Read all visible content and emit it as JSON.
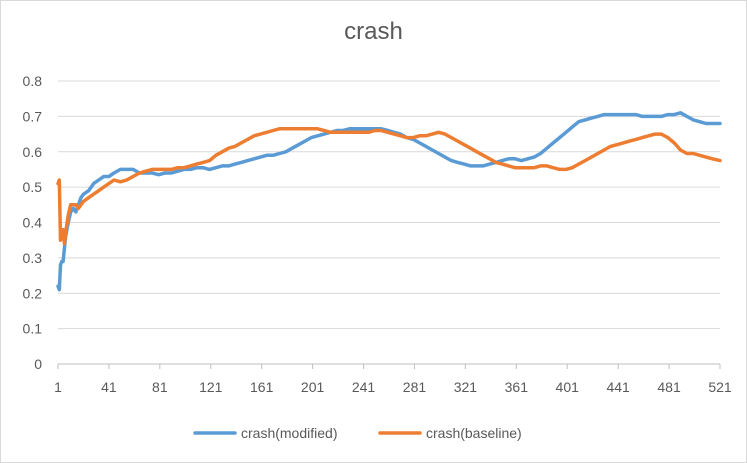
{
  "chart_data": {
    "type": "line",
    "title": "crash",
    "xlabel": "",
    "ylabel": "",
    "ylim": [
      0,
      0.8
    ],
    "yticks": [
      "0",
      "0.1",
      "0.2",
      "0.3",
      "0.4",
      "0.5",
      "0.6",
      "0.7",
      "0.8"
    ],
    "xlim": [
      1,
      521
    ],
    "xticks": [
      "1",
      "41",
      "81",
      "121",
      "161",
      "201",
      "241",
      "281",
      "321",
      "361",
      "401",
      "441",
      "481",
      "521"
    ],
    "grid": "horizontal",
    "legend_position": "bottom",
    "series": [
      {
        "name": "crash(modified)",
        "color": "#5b9bd5",
        "x": [
          1,
          2,
          3,
          4,
          5,
          7,
          9,
          11,
          13,
          15,
          17,
          19,
          21,
          25,
          29,
          33,
          37,
          41,
          45,
          50,
          55,
          60,
          65,
          70,
          75,
          80,
          85,
          90,
          95,
          100,
          105,
          110,
          115,
          120,
          125,
          130,
          135,
          140,
          145,
          150,
          155,
          160,
          165,
          170,
          175,
          180,
          185,
          190,
          195,
          200,
          205,
          210,
          215,
          220,
          225,
          230,
          235,
          240,
          245,
          250,
          255,
          260,
          265,
          270,
          275,
          280,
          285,
          290,
          295,
          300,
          305,
          310,
          315,
          320,
          325,
          330,
          335,
          340,
          345,
          350,
          355,
          360,
          365,
          370,
          375,
          380,
          385,
          390,
          395,
          400,
          405,
          410,
          415,
          420,
          425,
          430,
          435,
          440,
          445,
          450,
          455,
          460,
          465,
          470,
          475,
          480,
          485,
          490,
          495,
          500,
          505,
          510,
          515,
          521
        ],
        "values": [
          0.22,
          0.21,
          0.28,
          0.29,
          0.29,
          0.36,
          0.4,
          0.43,
          0.44,
          0.43,
          0.45,
          0.47,
          0.48,
          0.49,
          0.51,
          0.52,
          0.53,
          0.53,
          0.54,
          0.55,
          0.55,
          0.55,
          0.54,
          0.54,
          0.54,
          0.535,
          0.54,
          0.54,
          0.545,
          0.55,
          0.55,
          0.555,
          0.555,
          0.55,
          0.555,
          0.56,
          0.56,
          0.565,
          0.57,
          0.575,
          0.58,
          0.585,
          0.59,
          0.59,
          0.595,
          0.6,
          0.61,
          0.62,
          0.63,
          0.64,
          0.645,
          0.65,
          0.655,
          0.66,
          0.66,
          0.665,
          0.665,
          0.665,
          0.665,
          0.665,
          0.665,
          0.66,
          0.655,
          0.65,
          0.64,
          0.635,
          0.625,
          0.615,
          0.605,
          0.595,
          0.585,
          0.575,
          0.57,
          0.565,
          0.56,
          0.56,
          0.56,
          0.565,
          0.57,
          0.575,
          0.58,
          0.58,
          0.575,
          0.58,
          0.585,
          0.595,
          0.61,
          0.625,
          0.64,
          0.655,
          0.67,
          0.685,
          0.69,
          0.695,
          0.7,
          0.705,
          0.705,
          0.705,
          0.705,
          0.705,
          0.705,
          0.7,
          0.7,
          0.7,
          0.7,
          0.705,
          0.705,
          0.71,
          0.7,
          0.69,
          0.685,
          0.68,
          0.68,
          0.68
        ]
      },
      {
        "name": "crash(baseline)",
        "color": "#ed7d31",
        "x": [
          1,
          2,
          3,
          4,
          5,
          6,
          7,
          9,
          11,
          13,
          15,
          17,
          19,
          21,
          25,
          29,
          33,
          37,
          41,
          45,
          50,
          55,
          60,
          65,
          70,
          75,
          80,
          85,
          90,
          95,
          100,
          105,
          110,
          115,
          120,
          125,
          130,
          135,
          140,
          145,
          150,
          155,
          160,
          165,
          170,
          175,
          180,
          185,
          190,
          195,
          200,
          205,
          210,
          215,
          220,
          225,
          230,
          235,
          240,
          245,
          250,
          255,
          260,
          265,
          270,
          275,
          280,
          285,
          290,
          295,
          300,
          305,
          310,
          315,
          320,
          325,
          330,
          335,
          340,
          345,
          350,
          355,
          360,
          365,
          370,
          375,
          380,
          385,
          390,
          395,
          400,
          405,
          410,
          415,
          420,
          425,
          430,
          435,
          440,
          445,
          450,
          455,
          460,
          465,
          470,
          475,
          480,
          485,
          490,
          495,
          500,
          505,
          510,
          515,
          521
        ],
        "values": [
          0.51,
          0.52,
          0.35,
          0.36,
          0.38,
          0.34,
          0.37,
          0.42,
          0.45,
          0.45,
          0.45,
          0.44,
          0.45,
          0.46,
          0.47,
          0.48,
          0.49,
          0.5,
          0.51,
          0.52,
          0.515,
          0.52,
          0.53,
          0.54,
          0.545,
          0.55,
          0.55,
          0.55,
          0.55,
          0.555,
          0.555,
          0.56,
          0.565,
          0.57,
          0.575,
          0.59,
          0.6,
          0.61,
          0.615,
          0.625,
          0.635,
          0.645,
          0.65,
          0.655,
          0.66,
          0.665,
          0.665,
          0.665,
          0.665,
          0.665,
          0.665,
          0.665,
          0.66,
          0.655,
          0.655,
          0.655,
          0.655,
          0.655,
          0.655,
          0.655,
          0.66,
          0.66,
          0.655,
          0.65,
          0.645,
          0.64,
          0.64,
          0.645,
          0.645,
          0.65,
          0.655,
          0.65,
          0.64,
          0.63,
          0.62,
          0.61,
          0.6,
          0.59,
          0.58,
          0.57,
          0.565,
          0.56,
          0.555,
          0.555,
          0.555,
          0.555,
          0.56,
          0.56,
          0.555,
          0.55,
          0.55,
          0.555,
          0.565,
          0.575,
          0.585,
          0.595,
          0.605,
          0.615,
          0.62,
          0.625,
          0.63,
          0.635,
          0.64,
          0.645,
          0.65,
          0.65,
          0.64,
          0.625,
          0.605,
          0.595,
          0.595,
          0.59,
          0.585,
          0.58,
          0.575
        ]
      }
    ]
  }
}
